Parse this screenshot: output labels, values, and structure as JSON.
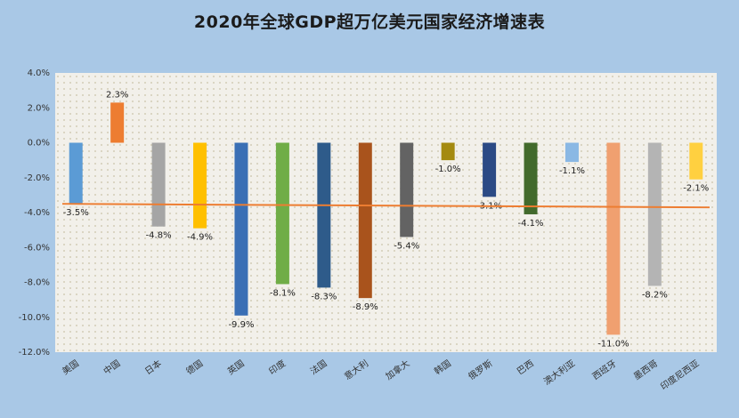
{
  "chart_data": {
    "type": "bar",
    "title": "2020年全球GDP超万亿美元国家经济增速表",
    "xlabel": "",
    "ylabel": "",
    "ylim": [
      -12,
      4
    ],
    "y_ticks": [
      "4.0%",
      "2.0%",
      "0.0%",
      "-2.0%",
      "-4.0%",
      "-6.0%",
      "-8.0%",
      "-10.0%",
      "-12.0%"
    ],
    "categories": [
      "美国",
      "中国",
      "日本",
      "德国",
      "英国",
      "印度",
      "法国",
      "意大利",
      "加拿大",
      "韩国",
      "俄罗斯",
      "巴西",
      "澳大利亚",
      "西班牙",
      "墨西哥",
      "印度尼西亚"
    ],
    "values": [
      -3.5,
      2.3,
      -4.8,
      -4.9,
      -9.9,
      -8.1,
      -8.3,
      -8.9,
      -5.4,
      -1.0,
      -3.1,
      -4.1,
      -1.1,
      -11.0,
      -8.2,
      -2.1
    ],
    "value_labels": [
      "-3.5%",
      "2.3%",
      "-4.8%",
      "-4.9%",
      "-9.9%",
      "-8.1%",
      "-8.3%",
      "-8.9%",
      "-5.4%",
      "-1.0%",
      "-3.1%",
      "-4.1%",
      "-1.1%",
      "-11.0%",
      "-8.2%",
      "-2.1%"
    ],
    "bar_colors": [
      "#5b9bd5",
      "#ed7d31",
      "#a5a5a5",
      "#ffc000",
      "#3a6fb5",
      "#70ad47",
      "#2e5b8a",
      "#a9531c",
      "#636363",
      "#a48a10",
      "#2b4a85",
      "#426a2c",
      "#8ab8e4",
      "#f0a070",
      "#b4b4b4",
      "#ffd040"
    ],
    "reference_line": {
      "value": -3.5,
      "color": "#ed7d31"
    },
    "plot_background": "#f2f0ea",
    "grid": "dotted"
  }
}
